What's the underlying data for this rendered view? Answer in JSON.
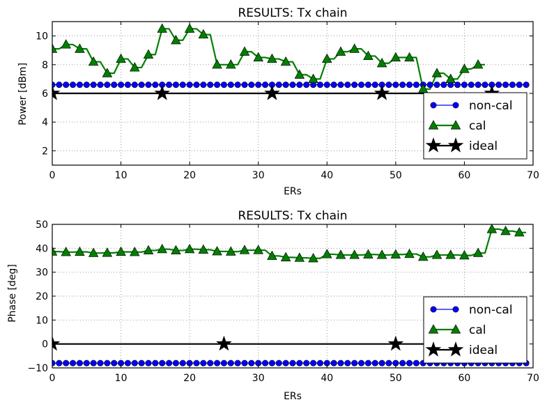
{
  "colors": {
    "noncal": "#0000ff",
    "cal": "#008000",
    "ideal": "#000000",
    "grid": "#8c8c8c"
  },
  "chart_data": [
    {
      "type": "line",
      "title": "RESULTS: Tx chain",
      "xlabel": "ERs",
      "ylabel": "Power [dBm]",
      "xlim": [
        0,
        70
      ],
      "ylim": [
        1,
        11
      ],
      "xticks": [
        0,
        10,
        20,
        30,
        40,
        50,
        60,
        70
      ],
      "yticks": [
        2,
        4,
        6,
        8,
        10
      ],
      "grid": true,
      "legend": "lower-right",
      "series": [
        {
          "name": "non-cal",
          "marker": "circle",
          "marker_every": 1,
          "x": [
            0,
            1,
            2,
            3,
            4,
            5,
            6,
            7,
            8,
            9,
            10,
            11,
            12,
            13,
            14,
            15,
            16,
            17,
            18,
            19,
            20,
            21,
            22,
            23,
            24,
            25,
            26,
            27,
            28,
            29,
            30,
            31,
            32,
            33,
            34,
            35,
            36,
            37,
            38,
            39,
            40,
            41,
            42,
            43,
            44,
            45,
            46,
            47,
            48,
            49,
            50,
            51,
            52,
            53,
            54,
            55,
            56,
            57,
            58,
            59,
            60,
            61,
            62,
            63,
            64,
            65,
            66,
            67,
            68,
            69
          ],
          "y": [
            6.6,
            6.6,
            6.6,
            6.6,
            6.6,
            6.6,
            6.6,
            6.6,
            6.6,
            6.6,
            6.6,
            6.6,
            6.6,
            6.6,
            6.6,
            6.6,
            6.6,
            6.6,
            6.6,
            6.6,
            6.6,
            6.6,
            6.6,
            6.6,
            6.6,
            6.6,
            6.6,
            6.6,
            6.6,
            6.6,
            6.6,
            6.6,
            6.6,
            6.6,
            6.6,
            6.6,
            6.6,
            6.6,
            6.6,
            6.6,
            6.6,
            6.6,
            6.6,
            6.6,
            6.6,
            6.6,
            6.6,
            6.6,
            6.6,
            6.6,
            6.6,
            6.6,
            6.6,
            6.6,
            6.6,
            6.6,
            6.6,
            6.6,
            6.6,
            6.6,
            6.6,
            6.6,
            6.6,
            6.6,
            6.6,
            6.6,
            6.6,
            6.6,
            6.6,
            6.6
          ]
        },
        {
          "name": "cal",
          "marker": "triangle",
          "marker_every": 2,
          "x": [
            0,
            1,
            2,
            3,
            4,
            5,
            6,
            7,
            8,
            9,
            10,
            11,
            12,
            13,
            14,
            15,
            16,
            17,
            18,
            19,
            20,
            21,
            22,
            23,
            24,
            25,
            26,
            27,
            28,
            29,
            30,
            31,
            32,
            33,
            34,
            35,
            36,
            37,
            38,
            39,
            40,
            41,
            42,
            43,
            44,
            45,
            46,
            47,
            48,
            49,
            50,
            51,
            52,
            53,
            54,
            55,
            56,
            57,
            58,
            59,
            60,
            61,
            62,
            63
          ],
          "y": [
            9.1,
            9.1,
            9.4,
            9.4,
            9.1,
            9.1,
            8.2,
            8.2,
            7.4,
            7.4,
            8.4,
            8.4,
            7.8,
            7.8,
            8.7,
            8.7,
            10.5,
            10.5,
            9.7,
            9.7,
            10.5,
            10.5,
            10.1,
            10.1,
            8.0,
            8.0,
            8.0,
            8.0,
            8.9,
            8.9,
            8.5,
            8.5,
            8.4,
            8.4,
            8.2,
            8.2,
            7.3,
            7.3,
            7.0,
            7.0,
            8.4,
            8.4,
            8.9,
            8.9,
            9.1,
            9.1,
            8.6,
            8.6,
            8.1,
            8.1,
            8.5,
            8.5,
            8.5,
            8.5,
            6.3,
            6.3,
            7.4,
            7.4,
            7.0,
            7.0,
            7.7,
            7.7,
            8.0,
            8.0
          ]
        },
        {
          "name": "ideal",
          "marker": "star",
          "marker_every": 4,
          "x": [
            0,
            4,
            8,
            12,
            16,
            20,
            24,
            28,
            32,
            36,
            40,
            44,
            48,
            52,
            56,
            60,
            64,
            68
          ],
          "y": [
            6,
            6,
            6,
            6,
            6,
            6,
            6,
            6,
            6,
            6,
            6,
            6,
            6,
            6,
            6,
            6,
            6,
            6
          ]
        }
      ]
    },
    {
      "type": "line",
      "title": "RESULTS: Tx chain",
      "xlabel": "ERs",
      "ylabel": "Phase [deg]",
      "xlim": [
        0,
        70
      ],
      "ylim": [
        -10,
        50
      ],
      "xticks": [
        0,
        10,
        20,
        30,
        40,
        50,
        60,
        70
      ],
      "yticks": [
        -10,
        0,
        10,
        20,
        30,
        40,
        50
      ],
      "grid": true,
      "legend": "lower-right",
      "series": [
        {
          "name": "non-cal",
          "marker": "circle",
          "marker_every": 1,
          "x": [
            0,
            1,
            2,
            3,
            4,
            5,
            6,
            7,
            8,
            9,
            10,
            11,
            12,
            13,
            14,
            15,
            16,
            17,
            18,
            19,
            20,
            21,
            22,
            23,
            24,
            25,
            26,
            27,
            28,
            29,
            30,
            31,
            32,
            33,
            34,
            35,
            36,
            37,
            38,
            39,
            40,
            41,
            42,
            43,
            44,
            45,
            46,
            47,
            48,
            49,
            50,
            51,
            52,
            53,
            54,
            55,
            56,
            57,
            58,
            59,
            60,
            61,
            62,
            63,
            64,
            65,
            66,
            67,
            68,
            69
          ],
          "y": [
            -8,
            -8,
            -8,
            -8,
            -8,
            -8,
            -8,
            -8,
            -8,
            -8,
            -8,
            -8,
            -8,
            -8,
            -8,
            -8,
            -8,
            -8,
            -8,
            -8,
            -8,
            -8,
            -8,
            -8,
            -8,
            -8,
            -8,
            -8,
            -8,
            -8,
            -8,
            -8,
            -8,
            -8,
            -8,
            -8,
            -8,
            -8,
            -8,
            -8,
            -8,
            -8,
            -8,
            -8,
            -8,
            -8,
            -8,
            -8,
            -8,
            -8,
            -8,
            -8,
            -8,
            -8,
            -8,
            -8,
            -8,
            -8,
            -8,
            -8,
            -8,
            -8,
            -8,
            -8,
            -8,
            -8,
            -8,
            -8,
            -8,
            -8
          ]
        },
        {
          "name": "cal",
          "marker": "triangle",
          "marker_every": 2,
          "x": [
            0,
            1,
            2,
            3,
            4,
            5,
            6,
            7,
            8,
            9,
            10,
            11,
            12,
            13,
            14,
            15,
            16,
            17,
            18,
            19,
            20,
            21,
            22,
            23,
            24,
            25,
            26,
            27,
            28,
            29,
            30,
            31,
            32,
            33,
            34,
            35,
            36,
            37,
            38,
            39,
            40,
            41,
            42,
            43,
            44,
            45,
            46,
            47,
            48,
            49,
            50,
            51,
            52,
            53,
            54,
            55,
            56,
            57,
            58,
            59,
            60,
            61,
            62,
            63,
            64,
            65,
            66,
            67,
            68,
            69
          ],
          "y": [
            38.6,
            38.6,
            38.4,
            38.4,
            38.5,
            38.5,
            38.0,
            38.0,
            38.1,
            38.1,
            38.5,
            38.5,
            38.4,
            38.4,
            39.1,
            39.1,
            39.6,
            39.6,
            39.1,
            39.1,
            39.6,
            39.6,
            39.4,
            39.4,
            38.7,
            38.7,
            38.6,
            38.6,
            39.2,
            39.2,
            39.2,
            39.2,
            36.8,
            36.8,
            36.2,
            36.2,
            36.0,
            36.0,
            35.8,
            35.8,
            37.5,
            37.5,
            37.2,
            37.2,
            37.2,
            37.2,
            37.4,
            37.4,
            37.2,
            37.2,
            37.4,
            37.4,
            37.6,
            37.6,
            36.4,
            36.4,
            37.2,
            37.2,
            37.2,
            37.2,
            37.0,
            37.0,
            38.0,
            38.0,
            48.0,
            48.0,
            47.2,
            47.2,
            46.6,
            46.6
          ]
        },
        {
          "name": "ideal",
          "marker": "star",
          "marker_every": 5,
          "x": [
            0,
            5,
            10,
            15,
            20,
            25,
            30,
            35,
            40,
            45,
            50,
            55,
            60,
            65
          ],
          "y": [
            0,
            0,
            0,
            0,
            0,
            0,
            0,
            0,
            0,
            0,
            0,
            0,
            0,
            0
          ]
        }
      ]
    }
  ]
}
